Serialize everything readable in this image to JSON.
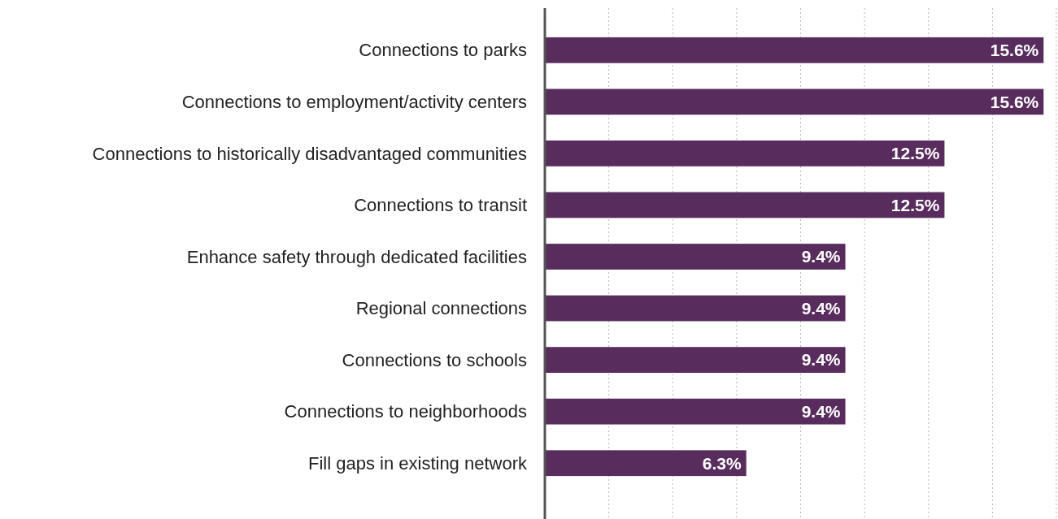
{
  "chart_data": {
    "type": "bar",
    "orientation": "horizontal",
    "categories": [
      "Connections to parks",
      "Connections to employment/activity centers",
      "Connections to historically disadvantaged communities",
      "Connections to transit",
      "Enhance safety through dedicated facilities",
      "Regional connections",
      "Connections to schools",
      "Connections to neighborhoods",
      "Fill gaps in existing network"
    ],
    "values": [
      15.6,
      15.6,
      12.5,
      12.5,
      9.4,
      9.4,
      9.4,
      9.4,
      6.3
    ],
    "value_labels": [
      "15.6%",
      "15.6%",
      "12.5%",
      "12.5%",
      "9.4%",
      "9.4%",
      "9.4%",
      "9.4%",
      "6.3%"
    ],
    "color": "#582d5e",
    "xlim": [
      0,
      16
    ],
    "xticks": [
      {
        "value": 0,
        "label": null
      },
      {
        "value": 2,
        "label": null
      },
      {
        "value": 4,
        "label": null
      },
      {
        "value": 6,
        "label": null
      },
      {
        "value": 8,
        "label": null
      },
      {
        "value": 10,
        "label": null
      },
      {
        "value": 12,
        "label": null
      },
      {
        "value": 14,
        "label": null
      },
      {
        "value": 16,
        "label": null
      }
    ],
    "grid": "x"
  }
}
